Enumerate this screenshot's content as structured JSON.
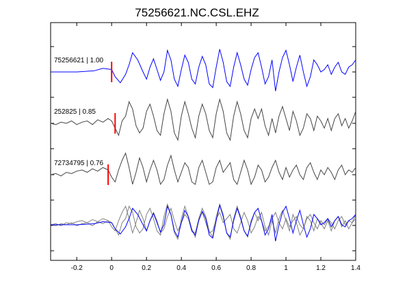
{
  "chart_data": {
    "type": "line",
    "title": "75256621.NC.CSL.EHZ",
    "xlabel": "",
    "ylabel": "",
    "xlim": [
      -0.35,
      1.4
    ],
    "x_ticks": [
      -0.2,
      0,
      0.2,
      0.4,
      0.6,
      0.8,
      1,
      1.2,
      1.4
    ],
    "x_tick_labels": [
      "-0.2",
      "0",
      "0.2",
      "0.4",
      "0.6",
      "0.8",
      "1",
      "1.2",
      "1.4"
    ],
    "grid": false,
    "traces": [
      {
        "label": "75256621 | 1.00",
        "color": "#0000ff",
        "pick_time": 0.0,
        "x": [
          -0.35,
          -0.2,
          -0.1,
          -0.05,
          0,
          0.02,
          0.05,
          0.08,
          0.1,
          0.12,
          0.15,
          0.18,
          0.2,
          0.22,
          0.24,
          0.26,
          0.28,
          0.3,
          0.32,
          0.34,
          0.36,
          0.38,
          0.4,
          0.42,
          0.44,
          0.46,
          0.48,
          0.5,
          0.52,
          0.54,
          0.56,
          0.58,
          0.6,
          0.62,
          0.64,
          0.66,
          0.68,
          0.7,
          0.72,
          0.74,
          0.76,
          0.78,
          0.8,
          0.82,
          0.84,
          0.86,
          0.88,
          0.9,
          0.92,
          0.94,
          0.96,
          0.98,
          1.0,
          1.02,
          1.04,
          1.06,
          1.08,
          1.1,
          1.12,
          1.14,
          1.16,
          1.18,
          1.2,
          1.22,
          1.24,
          1.26,
          1.28,
          1.3,
          1.32,
          1.34,
          1.36,
          1.38,
          1.4
        ],
        "y": [
          0.0,
          0.0,
          0.05,
          0.15,
          0.1,
          -0.2,
          -0.45,
          -0.1,
          0.3,
          0.8,
          0.5,
          0.0,
          -0.3,
          0.2,
          0.55,
          0.1,
          -0.35,
          0.0,
          0.9,
          0.5,
          -0.3,
          -0.6,
          0.1,
          0.7,
          0.4,
          -0.3,
          -0.5,
          0.2,
          0.65,
          0.3,
          -0.5,
          -0.65,
          0.2,
          0.95,
          0.4,
          -0.4,
          -0.6,
          0.2,
          0.8,
          0.3,
          -0.3,
          -0.55,
          0.1,
          0.6,
          0.8,
          0.2,
          -0.5,
          -0.2,
          0.5,
          -0.8,
          0.0,
          0.6,
          0.9,
          0.3,
          -0.4,
          0.2,
          0.7,
          0.0,
          -0.6,
          -0.2,
          0.5,
          0.3,
          0.0,
          0.1,
          0.3,
          -0.1,
          0.2,
          0.4,
          0.0,
          -0.1,
          0.2,
          0.3,
          0.5
        ]
      },
      {
        "label": "252825 | 0.85",
        "color": "#444444",
        "pick_time": 0.02,
        "x": [
          -0.35,
          -0.32,
          -0.29,
          -0.26,
          -0.23,
          -0.2,
          -0.17,
          -0.14,
          -0.11,
          -0.08,
          -0.05,
          -0.02,
          0.0,
          0.02,
          0.04,
          0.06,
          0.08,
          0.1,
          0.12,
          0.14,
          0.16,
          0.18,
          0.2,
          0.22,
          0.24,
          0.26,
          0.28,
          0.3,
          0.32,
          0.34,
          0.36,
          0.38,
          0.4,
          0.42,
          0.44,
          0.46,
          0.48,
          0.5,
          0.52,
          0.54,
          0.56,
          0.58,
          0.6,
          0.62,
          0.64,
          0.66,
          0.68,
          0.7,
          0.72,
          0.74,
          0.76,
          0.78,
          0.8,
          0.82,
          0.84,
          0.86,
          0.88,
          0.9,
          0.92,
          0.94,
          0.96,
          0.98,
          1.0,
          1.02,
          1.04,
          1.06,
          1.08,
          1.1,
          1.12,
          1.14,
          1.16,
          1.18,
          1.2,
          1.22,
          1.24,
          1.26,
          1.28,
          1.3,
          1.32,
          1.34,
          1.36,
          1.38,
          1.4
        ],
        "y": [
          0.0,
          -0.05,
          0.05,
          0.0,
          0.1,
          -0.05,
          0.05,
          0.1,
          -0.05,
          0.15,
          0.05,
          0.2,
          0.1,
          -0.2,
          -0.5,
          0.1,
          0.3,
          0.9,
          0.6,
          -0.1,
          -0.4,
          -0.2,
          0.5,
          0.8,
          0.3,
          -0.3,
          -0.5,
          0.4,
          1.0,
          0.5,
          -0.4,
          -0.7,
          0.3,
          0.9,
          0.4,
          -0.2,
          -0.6,
          0.3,
          0.8,
          0.4,
          -0.3,
          -0.6,
          0.4,
          1.0,
          0.5,
          -0.4,
          -0.7,
          0.3,
          0.9,
          0.4,
          -0.3,
          -0.6,
          0.2,
          0.6,
          0.2,
          0.6,
          -0.1,
          -0.5,
          0.2,
          -0.4,
          0.3,
          0.7,
          0.2,
          -0.3,
          0.5,
          0.1,
          -0.5,
          -0.2,
          0.4,
          0.2,
          -0.3,
          0.3,
          0.1,
          -0.2,
          0.2,
          -0.3,
          0.2,
          0.4,
          -0.1,
          0.2,
          -0.2,
          0.1,
          0.5
        ]
      },
      {
        "label": "72734795 | 0.76",
        "color": "#444444",
        "pick_time": -0.02,
        "x": [
          -0.35,
          -0.32,
          -0.29,
          -0.26,
          -0.23,
          -0.2,
          -0.17,
          -0.14,
          -0.11,
          -0.08,
          -0.05,
          -0.02,
          0.0,
          0.02,
          0.04,
          0.06,
          0.08,
          0.1,
          0.12,
          0.14,
          0.16,
          0.18,
          0.2,
          0.22,
          0.24,
          0.26,
          0.28,
          0.3,
          0.32,
          0.34,
          0.36,
          0.38,
          0.4,
          0.42,
          0.44,
          0.46,
          0.48,
          0.5,
          0.52,
          0.54,
          0.56,
          0.58,
          0.6,
          0.62,
          0.64,
          0.66,
          0.68,
          0.7,
          0.72,
          0.74,
          0.76,
          0.78,
          0.8,
          0.82,
          0.84,
          0.86,
          0.88,
          0.9,
          0.92,
          0.94,
          0.96,
          0.98,
          1.0,
          1.02,
          1.04,
          1.06,
          1.08,
          1.1,
          1.12,
          1.14,
          1.16,
          1.18,
          1.2,
          1.22,
          1.24,
          1.26,
          1.28,
          1.3,
          1.32,
          1.34,
          1.36,
          1.38,
          1.4
        ],
        "y": [
          0.0,
          0.05,
          -0.05,
          0.1,
          0.05,
          0.15,
          0.2,
          0.1,
          0.25,
          0.15,
          0.3,
          0.2,
          -0.1,
          -0.3,
          0.2,
          0.6,
          0.9,
          0.3,
          -0.4,
          0.1,
          0.7,
          0.3,
          -0.3,
          0.2,
          0.6,
          0.2,
          -0.4,
          -0.2,
          0.4,
          0.8,
          0.2,
          -0.3,
          0.1,
          0.5,
          0.3,
          -0.3,
          -0.4,
          0.3,
          0.6,
          0.1,
          -0.4,
          -0.3,
          0.3,
          0.6,
          0.1,
          0.3,
          0.5,
          -0.2,
          -0.4,
          0.1,
          0.6,
          0.2,
          -0.4,
          -0.1,
          0.4,
          0.2,
          -0.3,
          -0.1,
          0.3,
          0.6,
          0.1,
          -0.2,
          0.3,
          -0.1,
          0.2,
          0.4,
          0.0,
          -0.2,
          0.3,
          0.5,
          0.1,
          -0.2,
          0.2,
          0.0,
          0.3,
          0.1,
          -0.2,
          0.2,
          0.4,
          0.0,
          0.2,
          0.1,
          0.3
        ]
      }
    ]
  }
}
